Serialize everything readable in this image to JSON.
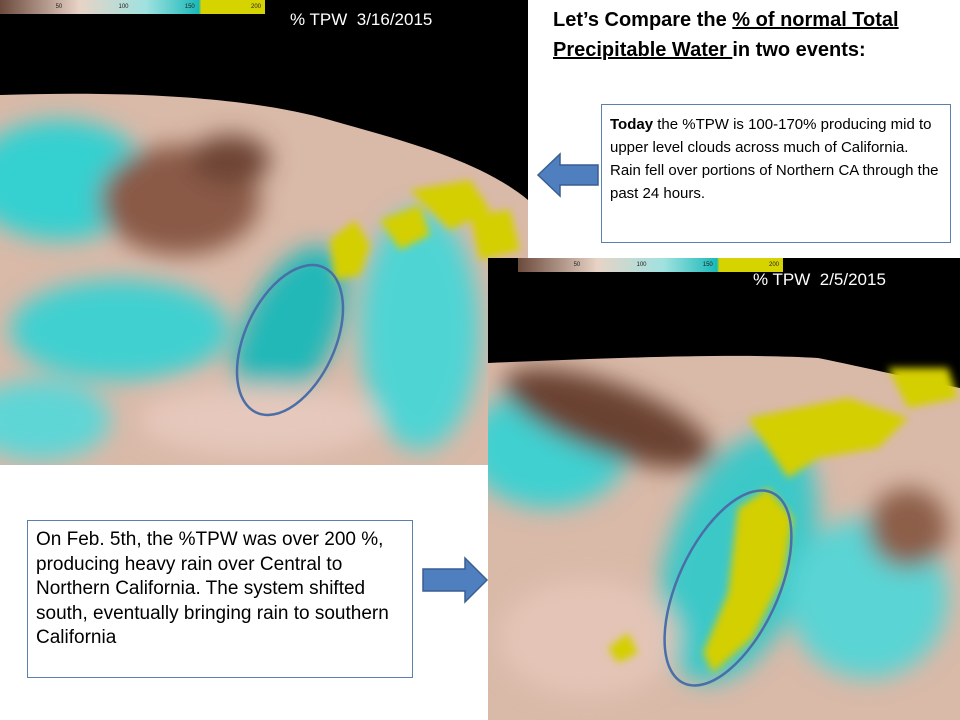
{
  "maps": [
    {
      "label": "% TPW  3/16/2015",
      "colorbar": [
        "50",
        "100",
        "150",
        "200"
      ]
    },
    {
      "label": "% TPW  2/5/2015",
      "colorbar": [
        "50",
        "100",
        "150",
        "200"
      ]
    }
  ],
  "title": {
    "parts": [
      "Let’s Compare the ",
      "% of normal Total Precipitable Water ",
      "in two events:"
    ]
  },
  "box1": {
    "bold": "Today",
    "text": " the %TPW is 100-170% producing mid to upper level clouds across much of California. Rain fell over portions of Northern CA through the past 24 hours."
  },
  "box2": {
    "text": "On Feb. 5th, the %TPW was over 200 %, producing heavy rain over Central to Northern California. The system shifted south, eventually bringing rain to southern California"
  }
}
